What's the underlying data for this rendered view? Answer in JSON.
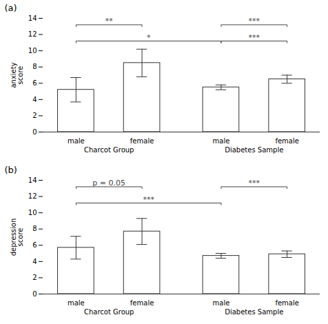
{
  "chart_data": [
    {
      "type": "bar",
      "title": "(a)",
      "categories": [
        "male",
        "female",
        "male",
        "female"
      ],
      "groups": [
        "Charcot Group",
        "Diabetes Sample"
      ],
      "values": [
        5.2,
        8.5,
        5.5,
        6.5
      ],
      "errors": [
        1.5,
        1.7,
        0.3,
        0.5
      ],
      "ylabel": "anxiety\nscore",
      "ylim": [
        0,
        14
      ],
      "yticks": [
        0,
        2,
        4,
        6,
        8,
        10,
        12,
        14
      ],
      "significance": [
        {
          "x1": 0,
          "x2": 1,
          "y": 13.2,
          "label": "**"
        },
        {
          "x1": 2,
          "x2": 3,
          "y": 13.2,
          "label": "***"
        },
        {
          "x1": 0,
          "x2": 2,
          "y": 11.2,
          "label": "*"
        },
        {
          "x1": 2,
          "x2": 3,
          "y": 11.2,
          "label": "***"
        }
      ],
      "color": "white"
    },
    {
      "type": "bar",
      "title": "(b)",
      "categories": [
        "male",
        "female",
        "male",
        "female"
      ],
      "groups": [
        "Charcot Group",
        "Diabetes Sample"
      ],
      "values": [
        5.7,
        7.7,
        4.7,
        4.9
      ],
      "errors": [
        1.4,
        1.6,
        0.3,
        0.4
      ],
      "ylabel": "depression\nscore",
      "ylim": [
        0,
        14
      ],
      "yticks": [
        0,
        2,
        4,
        6,
        8,
        10,
        12,
        14
      ],
      "significance": [
        {
          "x1": 0,
          "x2": 1,
          "y": 13.2,
          "label": "p = 0.05"
        },
        {
          "x1": 2,
          "x2": 3,
          "y": 13.2,
          "label": "***"
        },
        {
          "x1": 0,
          "x2": 2,
          "y": 11.2,
          "label": "***"
        }
      ],
      "color": "white"
    }
  ]
}
